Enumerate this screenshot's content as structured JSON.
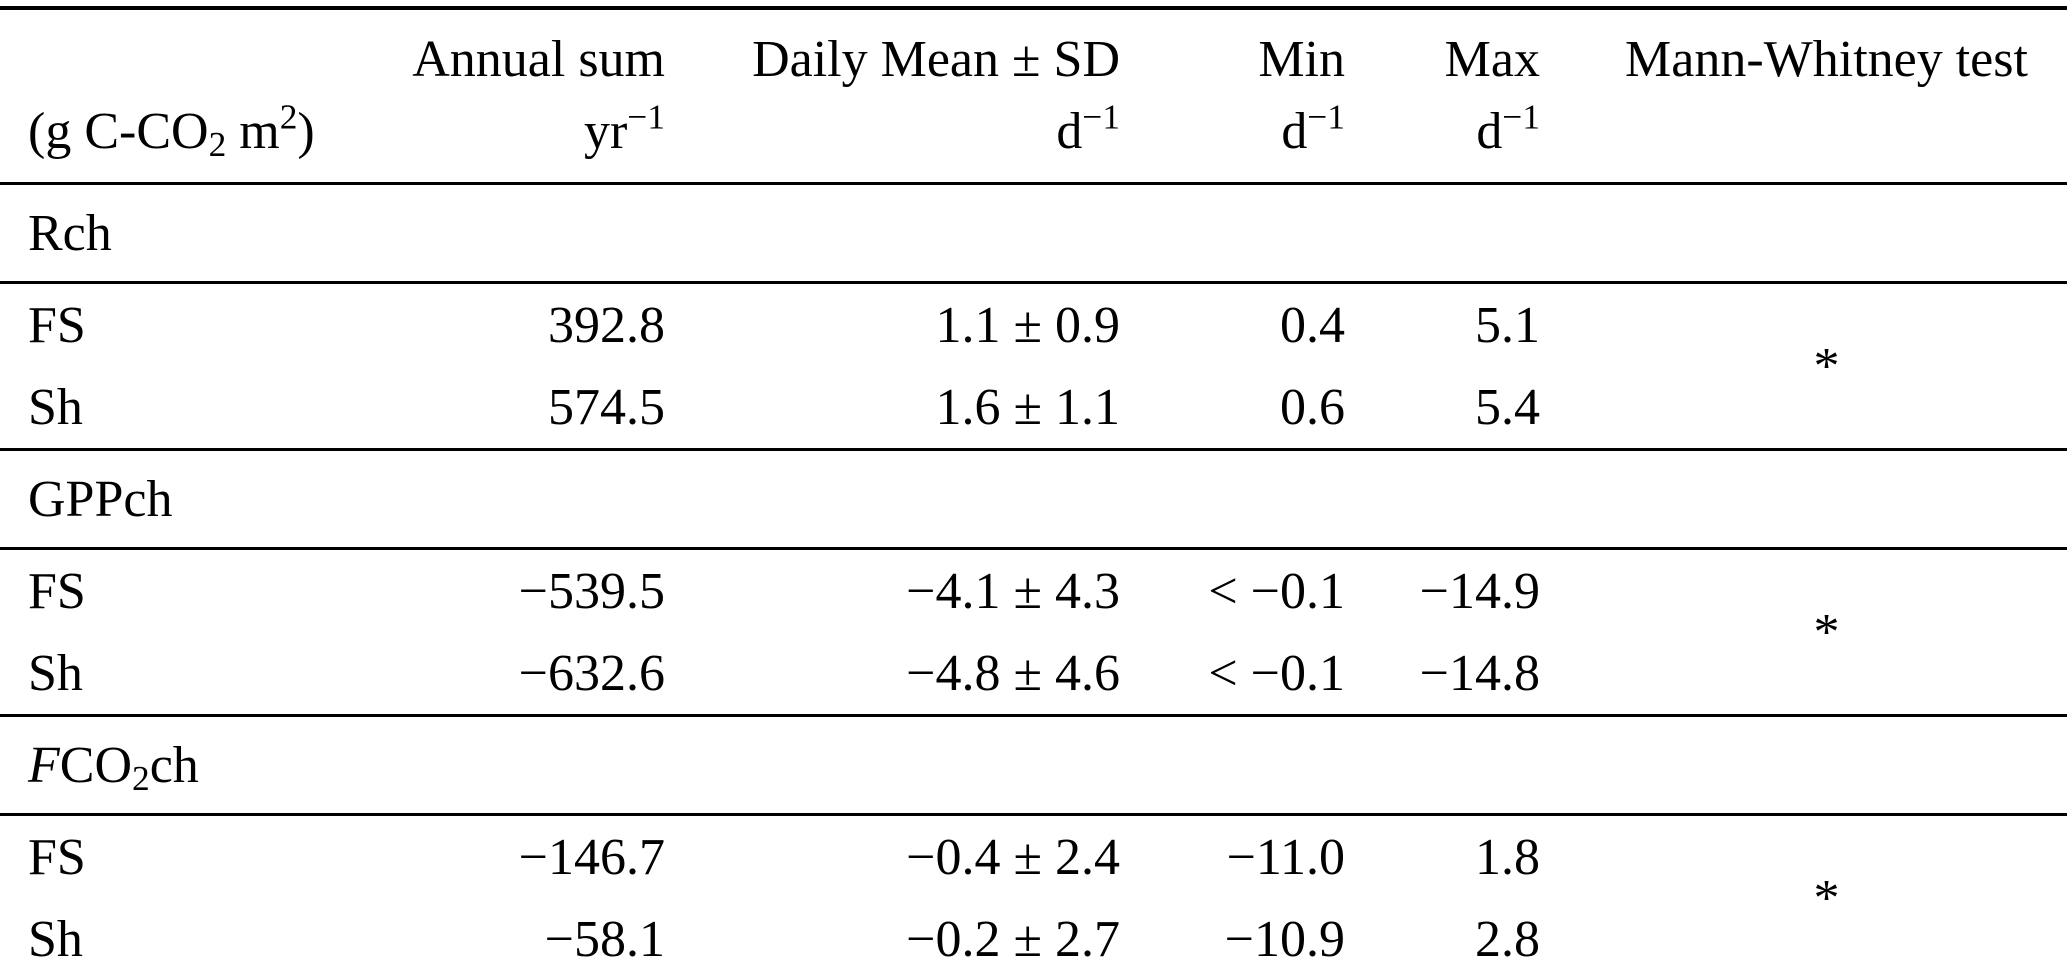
{
  "table": {
    "header": {
      "label_cell": {
        "p1": "(g C-CO",
        "sub2": "2",
        "p2": " m",
        "sup2": "2",
        "p3": ")"
      },
      "annual": {
        "title": "Annual sum",
        "unit_base": "yr",
        "unit_exp": "−1"
      },
      "daily": {
        "title": "Daily Mean ± SD",
        "unit_base": "d",
        "unit_exp": "−1"
      },
      "min": {
        "title": "Min",
        "unit_base": "d",
        "unit_exp": "−1"
      },
      "max": {
        "title": "Max",
        "unit_base": "d",
        "unit_exp": "−1"
      },
      "mw": {
        "title": "Mann-Whitney test"
      }
    },
    "sections": [
      {
        "label": {
          "italic": "",
          "p1": "Rch",
          "sub": "",
          "p2": ""
        },
        "mann_whitney": "*",
        "rows": [
          {
            "treatment": "FS",
            "annual": "392.8",
            "daily": "1.1 ± 0.9",
            "min": "0.4",
            "max": "5.1"
          },
          {
            "treatment": "Sh",
            "annual": "574.5",
            "daily": "1.6 ± 1.1",
            "min": "0.6",
            "max": "5.4"
          }
        ]
      },
      {
        "label": {
          "italic": "",
          "p1": "GPPch",
          "sub": "",
          "p2": ""
        },
        "mann_whitney": "*",
        "rows": [
          {
            "treatment": "FS",
            "annual": "−539.5",
            "daily": "−4.1 ± 4.3",
            "min": "< −0.1",
            "max": "−14.9"
          },
          {
            "treatment": "Sh",
            "annual": "−632.6",
            "daily": "−4.8 ± 4.6",
            "min": "< −0.1",
            "max": "−14.8"
          }
        ]
      },
      {
        "label": {
          "italic": "F",
          "p1": "CO",
          "sub": "2",
          "p2": "ch"
        },
        "mann_whitney": "*",
        "rows": [
          {
            "treatment": "FS",
            "annual": "−146.7",
            "daily": "−0.4 ± 2.4",
            "min": "−11.0",
            "max": "1.8"
          },
          {
            "treatment": "Sh",
            "annual": "−58.1",
            "daily": "−0.2 ± 2.7",
            "min": "−10.9",
            "max": "2.8"
          }
        ]
      }
    ]
  }
}
